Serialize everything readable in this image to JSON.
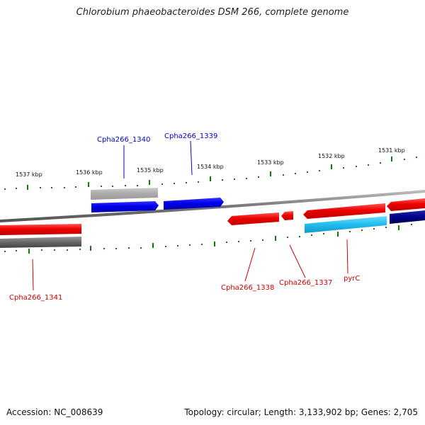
{
  "title": "Chlorobium phaeobacteroides DSM 266, complete genome",
  "ruler": {
    "labels": [
      "1537 kbp",
      "1536 kbp",
      "1535 kbp",
      "1534 kbp",
      "1533 kbp",
      "1532 kbp",
      "1531 kbp"
    ]
  },
  "genes": {
    "cpha266_1340": "Cpha266_1340",
    "cpha266_1339": "Cpha266_1339",
    "cpha266_1341": "Cpha266_1341",
    "cpha266_1338": "Cpha266_1338",
    "cpha266_1337": "Cpha266_1337",
    "pyrC": "pyrC"
  },
  "colors": {
    "forward_strand": "#0000ee",
    "reverse_strand": "#ee0000",
    "backbone": "#888888",
    "tick": "#117711",
    "light_blue": "#22bbee",
    "navy": "#000088",
    "grey": "#666666"
  },
  "footer": {
    "accession": "Accession: NC_008639",
    "summary": "Topology: circular; Length: 3,133,902 bp; Genes: 2,705"
  }
}
